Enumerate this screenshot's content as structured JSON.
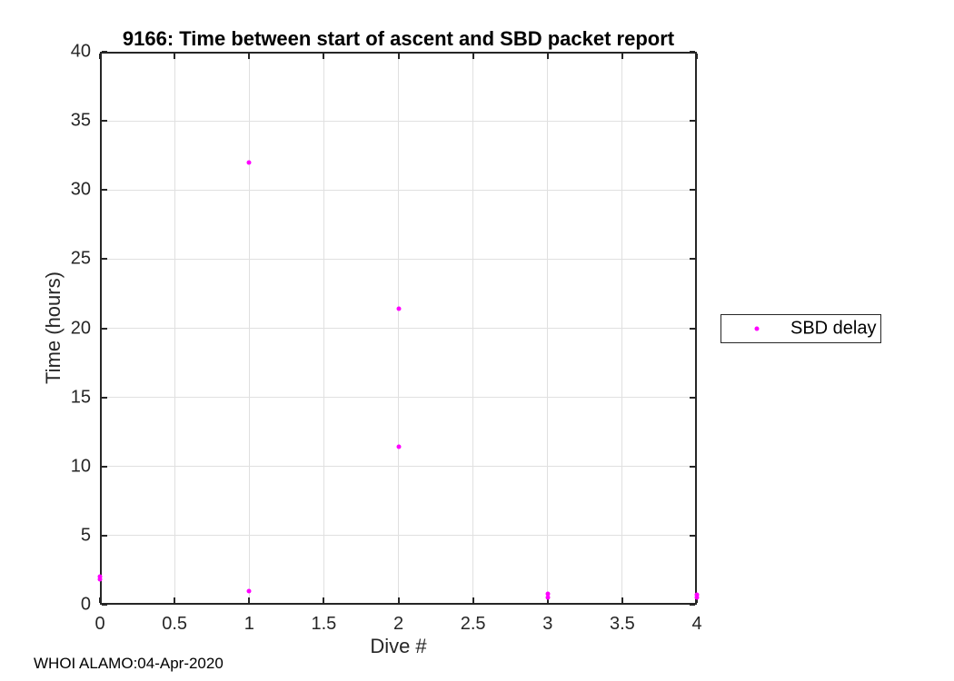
{
  "figure": {
    "watermark": "WHOI ALAMO:04-Apr-2020",
    "background_color": "#ffffff"
  },
  "legend": {
    "label": "SBD delay",
    "marker": "dot",
    "marker_color": "#ff00ff"
  },
  "colors": {
    "axis": "#262626",
    "grid": "#e0e0e0",
    "marker": "#ff00ff",
    "title_text": "#000000",
    "tick_text": "#262626"
  },
  "chart_data": {
    "type": "scatter",
    "title": "9166: Time between start of ascent and SBD packet report",
    "xlabel": "Dive #",
    "ylabel": "Time (hours)",
    "xlim": [
      0,
      4
    ],
    "ylim": [
      0,
      40
    ],
    "xticks": [
      0,
      0.5,
      1,
      1.5,
      2,
      2.5,
      3,
      3.5,
      4
    ],
    "xtick_labels": [
      "0",
      "0.5",
      "1",
      "1.5",
      "2",
      "2.5",
      "3",
      "3.5",
      "4"
    ],
    "yticks": [
      0,
      5,
      10,
      15,
      20,
      25,
      30,
      35,
      40
    ],
    "ytick_labels": [
      "0",
      "5",
      "10",
      "15",
      "20",
      "25",
      "30",
      "35",
      "40"
    ],
    "grid": true,
    "box": true,
    "legend_position": "right-outside",
    "series": [
      {
        "name": "SBD delay",
        "color": "#ff00ff",
        "marker": "dot",
        "points": [
          [
            0,
            1.85
          ],
          [
            0,
            2.05
          ],
          [
            1,
            32.0
          ],
          [
            1,
            1.0
          ],
          [
            2,
            21.4
          ],
          [
            2,
            11.4
          ],
          [
            3,
            0.55
          ],
          [
            3,
            0.8
          ],
          [
            4,
            0.5
          ],
          [
            4,
            0.75
          ]
        ]
      }
    ]
  }
}
